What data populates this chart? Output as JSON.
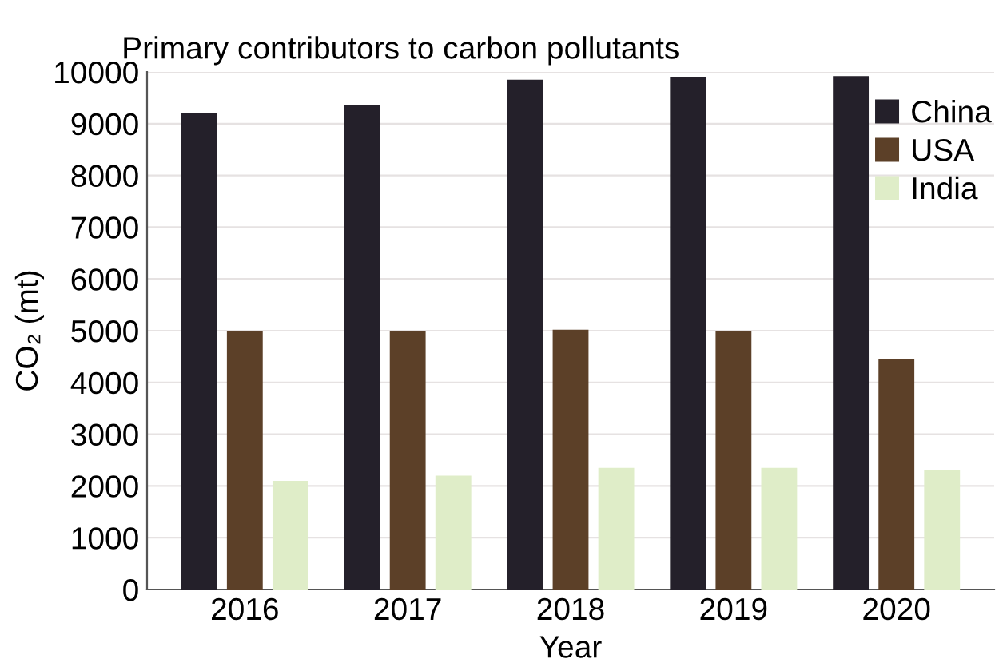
{
  "chart_data": {
    "type": "bar",
    "title": "Primary contributors to carbon pollutants",
    "xlabel": "Year",
    "ylabel": "CO₂ (mt)",
    "categories": [
      "2016",
      "2017",
      "2018",
      "2019",
      "2020"
    ],
    "series": [
      {
        "name": "China",
        "color": "#24202a",
        "values": [
          9200,
          9350,
          9850,
          9900,
          9920
        ]
      },
      {
        "name": "USA",
        "color": "#5c4028",
        "values": [
          5000,
          5000,
          5020,
          5000,
          4450
        ]
      },
      {
        "name": "India",
        "color": "#dfedc8",
        "values": [
          2100,
          2200,
          2350,
          2350,
          2300
        ]
      }
    ],
    "ylim": [
      0,
      10000
    ],
    "yticks": [
      0,
      1000,
      2000,
      3000,
      4000,
      5000,
      6000,
      7000,
      8000,
      9000,
      10000
    ],
    "grid": "y",
    "legend": "top right"
  }
}
